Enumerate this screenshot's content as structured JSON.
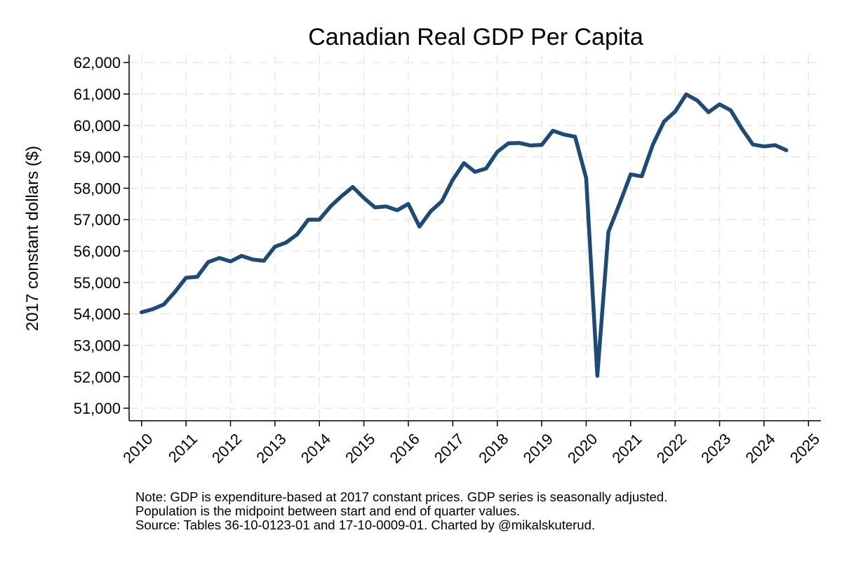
{
  "chart_data": {
    "type": "line",
    "title": "Canadian Real GDP Per Capita",
    "ylabel": "2017 constant dollars ($)",
    "xlabel": "",
    "ylim": [
      50600,
      62250
    ],
    "xlim": [
      2009.72,
      2025.28
    ],
    "y_ticks": [
      51000,
      52000,
      53000,
      54000,
      55000,
      56000,
      57000,
      58000,
      59000,
      60000,
      61000,
      62000
    ],
    "y_tick_labels": [
      "51,000",
      "52,000",
      "53,000",
      "54,000",
      "55,000",
      "56,000",
      "57,000",
      "58,000",
      "59,000",
      "60,000",
      "61,000",
      "62,000"
    ],
    "x_ticks": [
      2010,
      2011,
      2012,
      2013,
      2014,
      2015,
      2016,
      2017,
      2018,
      2019,
      2020,
      2021,
      2022,
      2023,
      2024,
      2025
    ],
    "x_tick_labels": [
      "2010",
      "2011",
      "2012",
      "2013",
      "2014",
      "2015",
      "2016",
      "2017",
      "2018",
      "2019",
      "2020",
      "2021",
      "2022",
      "2023",
      "2024",
      "2025"
    ],
    "grid": true,
    "line_color": "#1f4a73",
    "series": [
      {
        "name": "",
        "x": [
          2010.0,
          2010.25,
          2010.5,
          2010.75,
          2011.0,
          2011.25,
          2011.5,
          2011.75,
          2012.0,
          2012.25,
          2012.5,
          2012.75,
          2013.0,
          2013.25,
          2013.5,
          2013.75,
          2014.0,
          2014.25,
          2014.5,
          2014.75,
          2015.0,
          2015.25,
          2015.5,
          2015.75,
          2016.0,
          2016.25,
          2016.5,
          2016.75,
          2017.0,
          2017.25,
          2017.5,
          2017.75,
          2018.0,
          2018.25,
          2018.5,
          2018.75,
          2019.0,
          2019.25,
          2019.5,
          2019.75,
          2020.0,
          2020.25,
          2020.5,
          2020.75,
          2021.0,
          2021.25,
          2021.5,
          2021.75,
          2022.0,
          2022.25,
          2022.5,
          2022.75,
          2023.0,
          2023.25,
          2023.5,
          2023.75,
          2024.0,
          2024.25,
          2024.5
        ],
        "values": [
          54050,
          54150,
          54300,
          54700,
          55150,
          55180,
          55650,
          55780,
          55670,
          55850,
          55730,
          55690,
          56140,
          56270,
          56530,
          57000,
          57000,
          57420,
          57750,
          58040,
          57690,
          57390,
          57420,
          57300,
          57500,
          56780,
          57260,
          57580,
          58270,
          58800,
          58520,
          58630,
          59160,
          59430,
          59440,
          59360,
          59380,
          59830,
          59710,
          59640,
          58320,
          52030,
          56610,
          57500,
          58440,
          58380,
          59390,
          60120,
          60440,
          60990,
          60790,
          60420,
          60670,
          60480,
          59900,
          59390,
          59330,
          59370,
          59210
        ]
      }
    ]
  },
  "notes": {
    "line1": "Note: GDP is expenditure-based at 2017 constant prices. GDP series is seasonally adjusted.",
    "line2": "Population is the midpoint between start and end of quarter values.",
    "line3": "Source: Tables 36-10-0123-01 and 17-10-0009-01. Charted by @mikalskuterud."
  }
}
